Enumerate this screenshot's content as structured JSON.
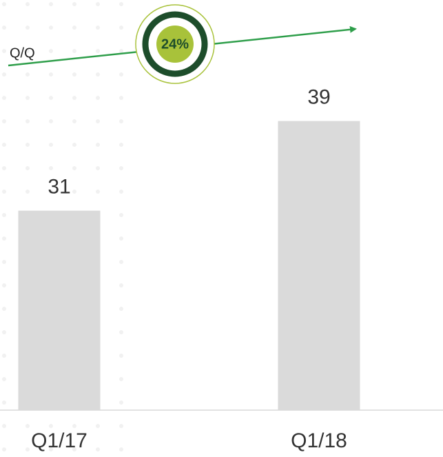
{
  "chart_data": {
    "type": "bar",
    "categories": [
      "Q1/17",
      "Q1/18"
    ],
    "values": [
      31,
      39
    ],
    "color": "#dadada",
    "ylim": [
      13.2,
      49.8
    ],
    "annotations": [
      "Q/Q",
      "24%"
    ]
  }
}
